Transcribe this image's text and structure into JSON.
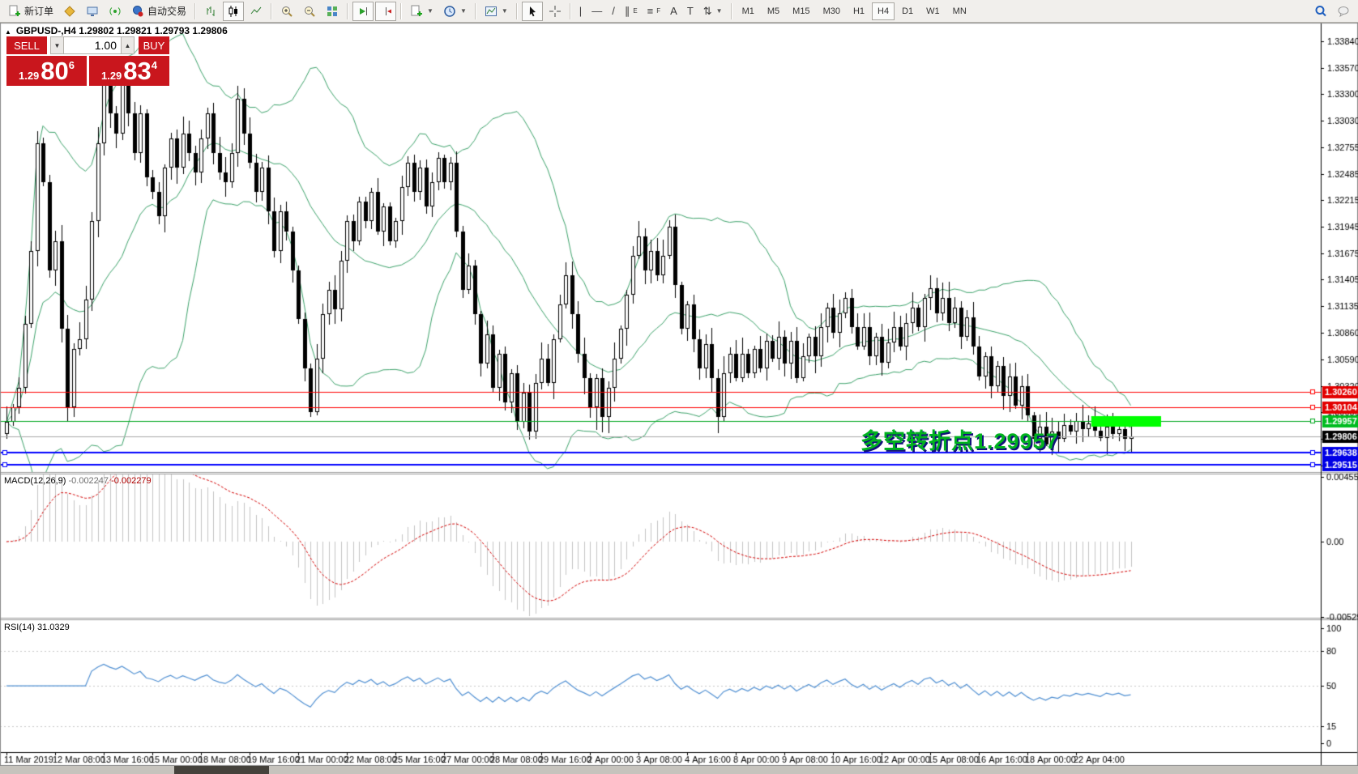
{
  "toolbar": {
    "new_order_label": "新订单",
    "autotrading_label": "自动交易",
    "text_tool_label": "A",
    "label_tool_label": "T",
    "icons": [
      "new-order",
      "metaeditor",
      "market",
      "signals",
      "autotrading",
      "bar-chart",
      "candlestick-chart",
      "line-chart",
      "zoom-in",
      "zoom-out",
      "tile-windows",
      "auto-scroll",
      "chart-shift",
      "indicators",
      "periods",
      "templates",
      "cursor",
      "crosshair",
      "vertical-line",
      "horizontal-line",
      "trendline",
      "equidistant-channel",
      "fibonacci",
      "text",
      "text-label",
      "arrows",
      "search",
      "chat"
    ],
    "timeframes": [
      {
        "label": "M1",
        "active": false
      },
      {
        "label": "M5",
        "active": false
      },
      {
        "label": "M15",
        "active": false
      },
      {
        "label": "M30",
        "active": false
      },
      {
        "label": "H1",
        "active": false
      },
      {
        "label": "H4",
        "active": true
      },
      {
        "label": "D1",
        "active": false
      },
      {
        "label": "W1",
        "active": false
      },
      {
        "label": "MN",
        "active": false
      }
    ]
  },
  "trade_panel": {
    "sell_label": "SELL",
    "buy_label": "BUY",
    "lot_value": "1.00",
    "sell_price": {
      "base": "1.29",
      "big": "80",
      "pip": "6"
    },
    "buy_price": {
      "base": "1.29",
      "big": "83",
      "pip": "4"
    }
  },
  "chart": {
    "title_line": "GBPUSD-,H4  1.29802 1.29821 1.29793 1.29806"
  },
  "indicators": {
    "macd": {
      "name": "MACD(12,26,9)",
      "value_main": "-0.002247",
      "value_signal": "-0.002279"
    },
    "rsi": {
      "name": "RSI(14)",
      "value": "31.0329"
    }
  },
  "annotation": {
    "text": "多空转折点1.29957",
    "color": "#00b21e"
  },
  "chart_data": {
    "type": "candlestick",
    "symbol": "GBPUSD-",
    "timeframe": "H4",
    "title": "GBPUSD-,H4",
    "ohlc": {
      "open": 1.29802,
      "high": 1.29821,
      "low": 1.29793,
      "close": 1.29806
    },
    "price_axis": {
      "ylim": [
        1.2944,
        1.3403
      ],
      "ticks": [
        "1.33840",
        "1.33570",
        "1.33300",
        "1.33030",
        "1.32755",
        "1.32485",
        "1.32215",
        "1.31945",
        "1.31675",
        "1.31405",
        "1.31135",
        "1.30860",
        "1.30590",
        "1.30320",
        "1.30050",
        "1.29780",
        "1.29510"
      ]
    },
    "closes": [
      1.2995,
      1.301,
      1.303,
      1.3095,
      1.317,
      1.328,
      1.324,
      1.315,
      1.318,
      1.309,
      1.301,
      1.307,
      1.308,
      1.312,
      1.32,
      1.328,
      1.334,
      1.331,
      1.329,
      1.3345,
      1.331,
      1.327,
      1.331,
      1.3245,
      1.323,
      1.3205,
      1.3255,
      1.3285,
      1.3255,
      1.329,
      1.327,
      1.325,
      1.3285,
      1.331,
      1.327,
      1.325,
      1.324,
      1.327,
      1.3325,
      1.329,
      1.326,
      1.323,
      1.3255,
      1.321,
      1.317,
      1.321,
      1.319,
      1.315,
      1.31,
      1.305,
      1.3005,
      1.306,
      1.3105,
      1.313,
      1.311,
      1.316,
      1.32,
      1.318,
      1.322,
      1.32,
      1.323,
      1.319,
      1.3215,
      1.318,
      1.32,
      1.3235,
      1.326,
      1.323,
      1.3255,
      1.3215,
      1.324,
      1.3265,
      1.324,
      1.326,
      1.319,
      1.313,
      1.3155,
      1.3105,
      1.3055,
      1.3085,
      1.303,
      1.3065,
      1.3015,
      1.3045,
      1.2995,
      1.3025,
      1.2985,
      1.3035,
      1.306,
      1.3035,
      1.308,
      1.3115,
      1.3145,
      1.3105,
      1.3065,
      1.304,
      1.301,
      1.304,
      1.3,
      1.303,
      1.306,
      1.309,
      1.3125,
      1.3165,
      1.3185,
      1.315,
      1.317,
      1.3145,
      1.3165,
      1.3195,
      1.3135,
      1.309,
      1.3115,
      1.308,
      1.305,
      1.3075,
      1.304,
      1.3,
      1.3045,
      1.3065,
      1.304,
      1.3065,
      1.3045,
      1.307,
      1.305,
      1.3078,
      1.306,
      1.3082,
      1.3055,
      1.3078,
      1.304,
      1.3062,
      1.3082,
      1.3062,
      1.3092,
      1.3112,
      1.3086,
      1.3106,
      1.3122,
      1.3092,
      1.3072,
      1.3092,
      1.3062,
      1.3082,
      1.3056,
      1.3076,
      1.3092,
      1.3072,
      1.3096,
      1.3112,
      1.3092,
      1.3122,
      1.3132,
      1.3106,
      1.3122,
      1.3096,
      1.3112,
      1.3082,
      1.3102,
      1.3072,
      1.3042,
      1.3062,
      1.3032,
      1.3052,
      1.3022,
      1.3042,
      1.3012,
      1.3032,
      1.3002,
      1.2978,
      1.299,
      1.2972,
      1.2985,
      1.2978,
      1.2992,
      1.2985,
      1.2996,
      1.2988,
      1.2994,
      1.2986,
      1.2979,
      1.299,
      1.2983,
      1.2988,
      1.2978,
      1.29806
    ],
    "wick_overrides": {
      "19": {
        "h": 1.3352
      },
      "50": {
        "l": 1.3
      },
      "86": {
        "l": 1.2977
      },
      "97": {
        "l": 1.2987
      },
      "117": {
        "l": 1.2983
      },
      "171": {
        "l": 1.297
      }
    },
    "bollinger": {
      "period": 20,
      "deviation": 1.7,
      "color": "#3da36b"
    },
    "levels": [
      {
        "price": 1.3026,
        "label": "1.30260",
        "color": "#ff0000",
        "label_bg": "#e30000",
        "width": 1,
        "handles": [
          "r"
        ]
      },
      {
        "price": 1.30104,
        "label": "1.30104",
        "color": "#ff0000",
        "label_bg": "#e30000",
        "width": 1,
        "handles": [
          "r"
        ]
      },
      {
        "price": 1.29957,
        "label": "1.29957",
        "color": "#00a81e",
        "label_bg": "#00bc20",
        "width": 1,
        "handles": [
          "r"
        ]
      },
      {
        "price": 1.29806,
        "label": "1.29806",
        "color": "#a8a8a8",
        "label_bg": "#000000",
        "width": 1,
        "handles": []
      },
      {
        "price": 1.29638,
        "label": "1.29638",
        "color": "#0000ff",
        "label_bg": "#0000e6",
        "width": 2,
        "handles": [
          "l",
          "r"
        ]
      },
      {
        "price": 1.29515,
        "label": "1.29515",
        "color": "#0000ff",
        "label_bg": "#0000e6",
        "width": 2,
        "handles": [
          "l",
          "r"
        ]
      }
    ],
    "highlight": {
      "x1_idx": 178.5,
      "x2_idx": 190,
      "price": 1.2995,
      "height": 13,
      "color": "#00ff00"
    },
    "macd": {
      "params": [
        12,
        26,
        9
      ],
      "ylim": [
        -0.00535,
        0.00478
      ],
      "axis": [
        {
          "v": 0.004551,
          "t": "0.004551"
        },
        {
          "v": 0,
          "t": "0.00"
        },
        {
          "v": -0.005295,
          "t": "-0.005295"
        }
      ],
      "hist_color": "#c4c4c4",
      "signal_color": "#d40000",
      "current": [
        -0.002247,
        -0.002279
      ]
    },
    "rsi": {
      "period": 14,
      "ylim": [
        -6,
        107
      ],
      "levels": [
        80,
        50,
        15
      ],
      "axis": [
        {
          "v": 100,
          "t": "100"
        },
        {
          "v": 80,
          "t": "80"
        },
        {
          "v": 50,
          "t": "50"
        },
        {
          "v": 15,
          "t": "15"
        },
        {
          "v": 0,
          "t": "0"
        }
      ],
      "color": "#4f8fd2",
      "current": 31.0329
    },
    "time_labels": [
      "11 Mar 2019",
      "12 Mar 08:00",
      "13 Mar 16:00",
      "15 Mar 00:00",
      "18 Mar 08:00",
      "19 Mar 16:00",
      "21 Mar 00:00",
      "22 Mar 08:00",
      "25 Mar 16:00",
      "27 Mar 00:00",
      "28 Mar 08:00",
      "29 Mar 16:00",
      "2 Apr 00:00",
      "3 Apr 08:00",
      "4 Apr 16:00",
      "8 Apr 00:00",
      "9 Apr 08:00",
      "10 Apr 16:00",
      "12 Apr 00:00",
      "15 Apr 08:00",
      "16 Apr 16:00",
      "18 Apr 00:00",
      "22 Apr 04:00"
    ]
  }
}
